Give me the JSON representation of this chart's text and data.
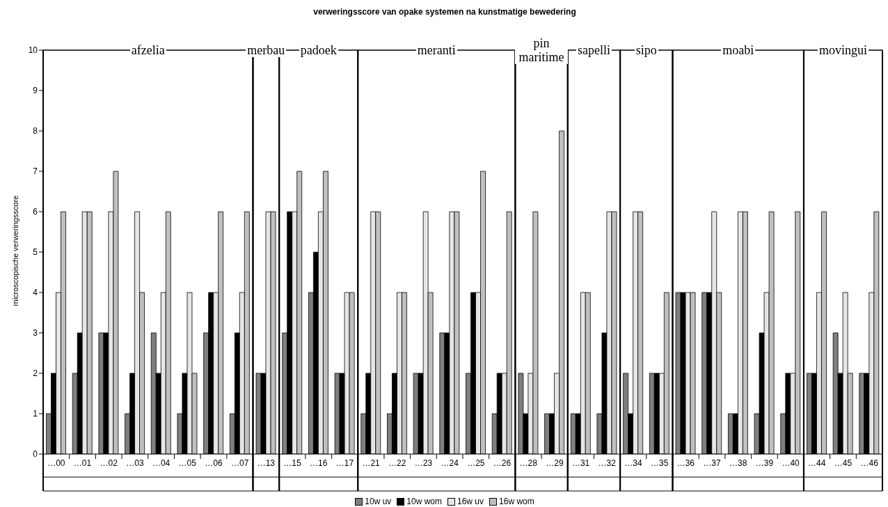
{
  "chart_data": {
    "type": "bar",
    "title": "verweringsscore van opake systemen na kunstmatige bewedering",
    "ylabel": "microscopische verweringsscore",
    "categories": [
      "…00",
      "…01",
      "…02",
      "…03",
      "…04",
      "…05",
      "…06",
      "…07",
      "…13",
      "…15",
      "…16",
      "…17",
      "…21",
      "…22",
      "…23",
      "…24",
      "…25",
      "…26",
      "…28",
      "…29",
      "…31",
      "…32",
      "…34",
      "…35",
      "…36",
      "…37",
      "…38",
      "…39",
      "…40",
      "…44",
      "…45",
      "…46"
    ],
    "series": [
      {
        "name": "10w uv",
        "color": "#7f7f7f",
        "values": [
          1,
          2,
          3,
          1,
          3,
          1,
          3,
          1,
          2,
          3,
          4,
          2,
          1,
          1,
          2,
          3,
          2,
          1,
          2,
          1,
          1,
          1,
          2,
          2,
          4,
          4,
          1,
          1,
          1,
          2,
          3,
          2
        ]
      },
      {
        "name": "10w wom",
        "color": "#000000",
        "values": [
          2,
          3,
          3,
          2,
          2,
          2,
          4,
          3,
          2,
          6,
          5,
          2,
          2,
          2,
          2,
          3,
          4,
          2,
          1,
          1,
          1,
          3,
          1,
          2,
          4,
          4,
          1,
          3,
          2,
          2,
          2,
          2
        ]
      },
      {
        "name": "16w uv",
        "color": "#e6e6e6",
        "values": [
          4,
          6,
          6,
          6,
          4,
          4,
          4,
          4,
          6,
          6,
          6,
          4,
          6,
          4,
          6,
          6,
          4,
          2,
          2,
          2,
          4,
          6,
          6,
          2,
          4,
          6,
          6,
          4,
          2,
          4,
          4,
          4
        ]
      },
      {
        "name": "16w wom",
        "color": "#c0c0c0",
        "values": [
          6,
          6,
          7,
          4,
          6,
          2,
          6,
          6,
          6,
          7,
          7,
          4,
          6,
          4,
          4,
          6,
          7,
          6,
          6,
          8,
          4,
          6,
          6,
          4,
          4,
          4,
          6,
          6,
          6,
          6,
          2,
          6
        ]
      }
    ],
    "annotations": [
      "afzelia",
      "merbau",
      "padoek",
      "meranti",
      "pin maritime",
      "sapelli",
      "sipo",
      "moabi",
      "movingui"
    ],
    "ylim": [
      0,
      10
    ],
    "yticks": [
      0,
      1,
      2,
      3,
      4,
      5,
      6,
      7,
      8,
      9,
      10
    ],
    "grid": false,
    "legend": "bottom"
  }
}
